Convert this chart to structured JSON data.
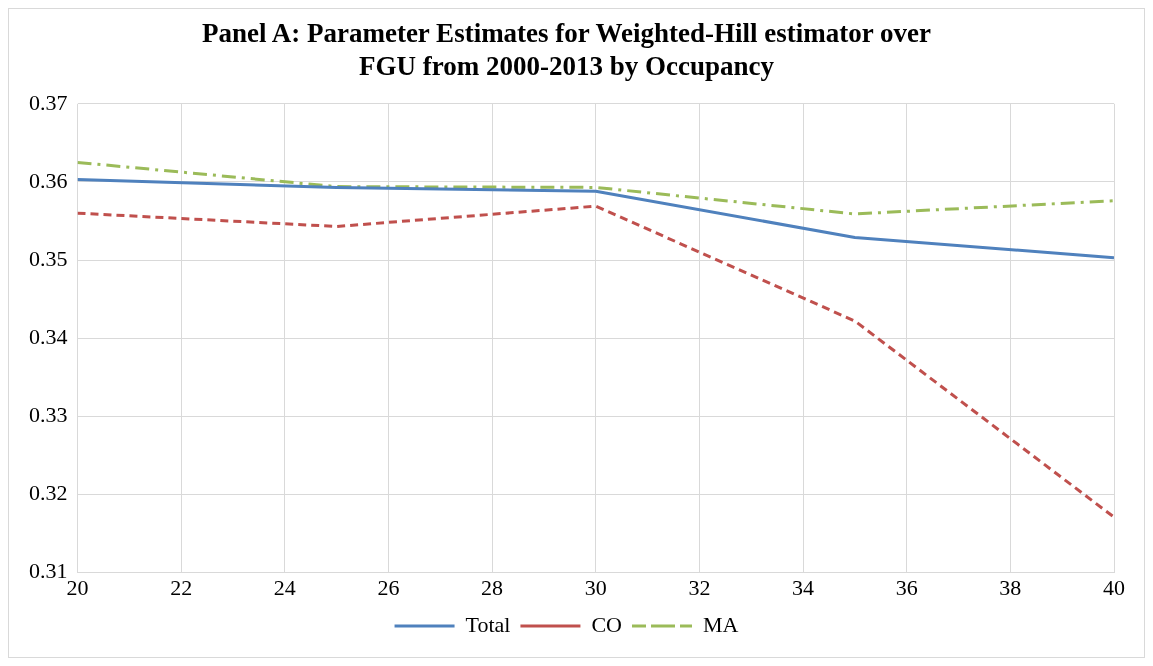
{
  "chart_data": {
    "type": "line",
    "title": "Panel A: Parameter Estimates for Weighted-Hill estimator over\nFGU from 2000-2013 by Occupancy",
    "x": [
      20,
      25,
      30,
      35,
      40
    ],
    "series": [
      {
        "name": "Total",
        "color": "#4f81bd",
        "line_style": "solid",
        "values": [
          0.3603,
          0.3593,
          0.3588,
          0.3529,
          0.3503
        ]
      },
      {
        "name": "CO",
        "color": "#c0504d",
        "line_style": "dashed",
        "values": [
          0.356,
          0.3543,
          0.3569,
          0.3422,
          0.3171
        ]
      },
      {
        "name": "MA",
        "color": "#9bbb59",
        "line_style": "dashdot",
        "values": [
          0.3625,
          0.3594,
          0.3593,
          0.3559,
          0.3576
        ]
      }
    ],
    "xlim": [
      20,
      40
    ],
    "xticks": [
      20,
      22,
      24,
      26,
      28,
      30,
      32,
      34,
      36,
      38,
      40
    ],
    "ylim": [
      0.31,
      0.37
    ],
    "yticks": [
      0.31,
      0.32,
      0.33,
      0.34,
      0.35,
      0.36,
      0.37
    ],
    "grid": true,
    "legend": "bottom",
    "marker": "none"
  }
}
